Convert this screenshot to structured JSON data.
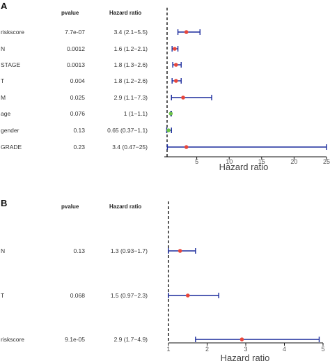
{
  "chart_data": [
    {
      "type": "forest",
      "panel_label": "A",
      "headers": {
        "variable": "",
        "pvalue": "pvalue",
        "hr": "Hazard ratio"
      },
      "rows": [
        {
          "variable": "riskscore",
          "pvalue": "7.7e-07",
          "hr_text": "3.4 (2.1−5.5)",
          "hr": 3.4,
          "lower": 2.1,
          "upper": 5.5,
          "color": "#e8473c"
        },
        {
          "variable": "N",
          "pvalue": "0.0012",
          "hr_text": "1.6 (1.2−2.1)",
          "hr": 1.6,
          "lower": 1.2,
          "upper": 2.1,
          "color": "#e8473c"
        },
        {
          "variable": "STAGE",
          "pvalue": "0.0013",
          "hr_text": "1.8 (1.3−2.6)",
          "hr": 1.8,
          "lower": 1.3,
          "upper": 2.6,
          "color": "#e8473c"
        },
        {
          "variable": "T",
          "pvalue": "0.004",
          "hr_text": "1.8 (1.2−2.6)",
          "hr": 1.8,
          "lower": 1.2,
          "upper": 2.6,
          "color": "#e8473c"
        },
        {
          "variable": "M",
          "pvalue": "0.025",
          "hr_text": "2.9 (1.1−7.3)",
          "hr": 2.9,
          "lower": 1.1,
          "upper": 7.3,
          "color": "#e8473c"
        },
        {
          "variable": "age",
          "pvalue": "0.076",
          "hr_text": "1 (1−1.1)",
          "hr": 1.0,
          "lower": 1.0,
          "upper": 1.1,
          "color": "#6cc24a"
        },
        {
          "variable": "gender",
          "pvalue": "0.13",
          "hr_text": "0.65 (0.37−1.1)",
          "hr": 0.65,
          "lower": 0.37,
          "upper": 1.1,
          "color": "#6cc24a"
        },
        {
          "variable": "GRADE",
          "pvalue": "0.23",
          "hr_text": "3.4 (0.47−25)",
          "hr": 3.4,
          "lower": 0.47,
          "upper": 25,
          "color": "#e8473c"
        }
      ],
      "xlim": [
        0,
        25
      ],
      "xticks": [
        5,
        10,
        15,
        20,
        25
      ],
      "reference_line": 1,
      "xlabel": "Hazard ratio",
      "ci_color": "#1a2a9c"
    },
    {
      "type": "forest",
      "panel_label": "B",
      "headers": {
        "variable": "",
        "pvalue": "pvalue",
        "hr": "Hazard ratio"
      },
      "rows": [
        {
          "variable": "N",
          "pvalue": "0.13",
          "hr_text": "1.3 (0.93−1.7)",
          "hr": 1.3,
          "lower": 0.93,
          "upper": 1.7,
          "color": "#e8473c"
        },
        {
          "variable": "T",
          "pvalue": "0.068",
          "hr_text": "1.5 (0.97−2.3)",
          "hr": 1.5,
          "lower": 0.97,
          "upper": 2.3,
          "color": "#e8473c"
        },
        {
          "variable": "riskscore",
          "pvalue": "9.1e-05",
          "hr_text": "2.9 (1.7−4.9)",
          "hr": 2.9,
          "lower": 1.7,
          "upper": 4.9,
          "color": "#e8473c"
        }
      ],
      "xlim": [
        1,
        5
      ],
      "xticks": [
        1,
        2,
        3,
        4,
        5
      ],
      "reference_line": 1,
      "xlabel": "Hazard ratio",
      "ci_color": "#1a2a9c"
    }
  ]
}
